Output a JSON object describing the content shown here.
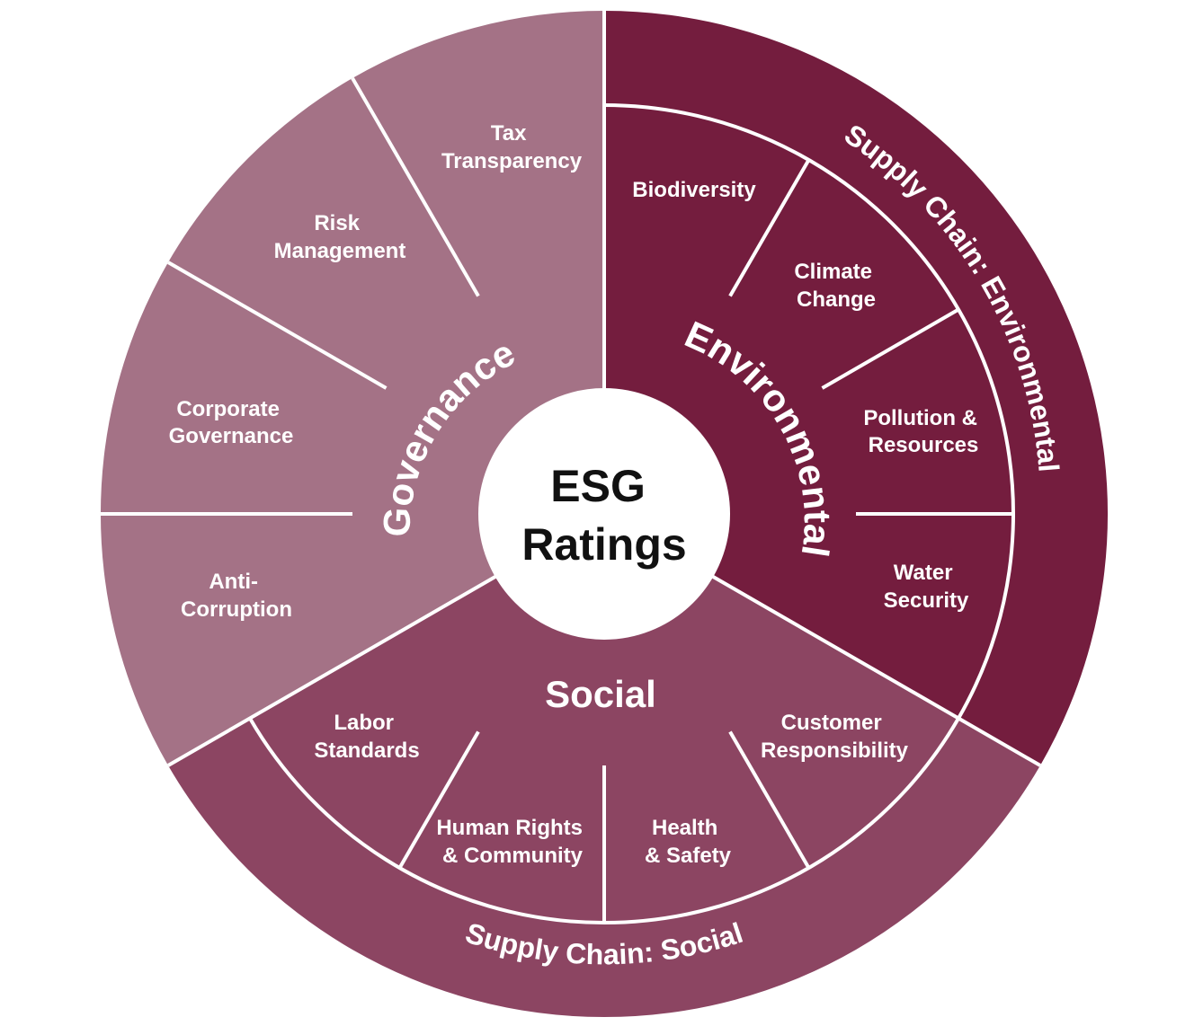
{
  "center": {
    "lines": [
      "ESG",
      "Ratings"
    ]
  },
  "pillars": {
    "governance": {
      "label": "Governance",
      "color": "#a47286",
      "segments": [
        {
          "lines": [
            "Tax",
            "Transparency"
          ]
        },
        {
          "lines": [
            "Risk",
            "Management"
          ]
        },
        {
          "lines": [
            "Corporate",
            "Governance"
          ]
        },
        {
          "lines": [
            "Anti-",
            "Corruption"
          ]
        }
      ]
    },
    "environmental": {
      "label": "Environmental",
      "color": "#741d3e",
      "segments": [
        {
          "lines": [
            "Biodiversity"
          ]
        },
        {
          "lines": [
            "Climate",
            "Change"
          ]
        },
        {
          "lines": [
            "Pollution &",
            "Resources"
          ]
        },
        {
          "lines": [
            "Water",
            "Security"
          ]
        }
      ]
    },
    "social": {
      "label": "Social",
      "color": "#8c4562",
      "segments": [
        {
          "lines": [
            "Labor",
            "Standards"
          ]
        },
        {
          "lines": [
            "Human Rights",
            "& Community"
          ]
        },
        {
          "lines": [
            "Health",
            "& Safety"
          ]
        },
        {
          "lines": [
            "Customer",
            "Responsibility"
          ]
        }
      ]
    }
  },
  "supply_chain": {
    "environmental": "Supply Chain: Environmental",
    "social": "Supply Chain: Social"
  },
  "colors": {
    "divider": "#ffffff",
    "center_fill": "#ffffff",
    "center_text": "#111111"
  }
}
